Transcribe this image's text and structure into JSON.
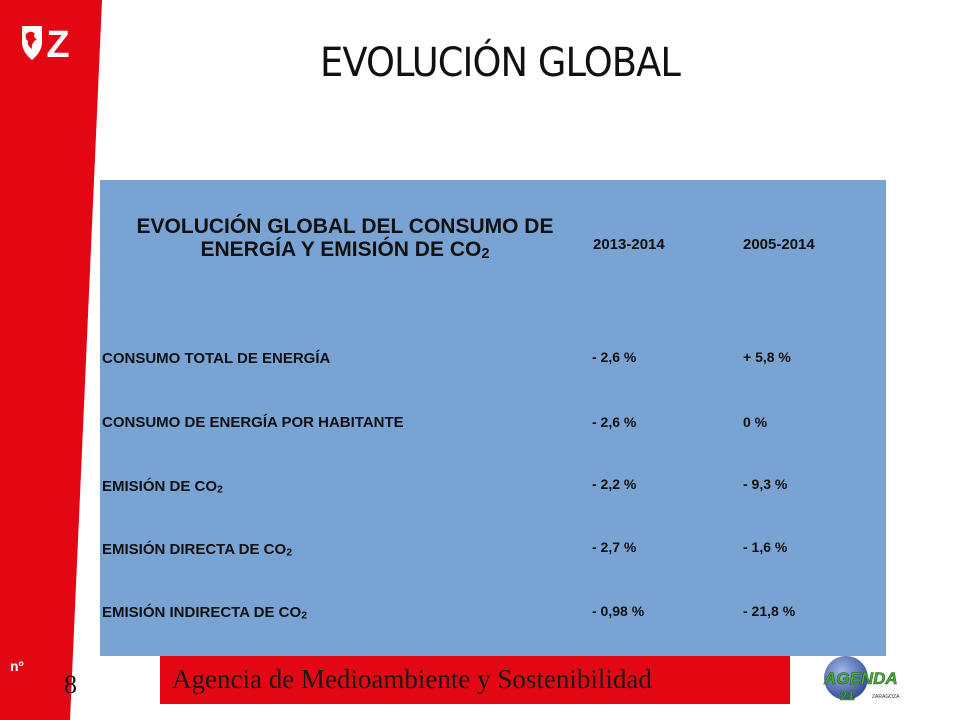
{
  "header": {
    "title": "EVOLUCIÓN GLOBAL",
    "logo_icon": "zaragoza-lion-logo-icon",
    "logo_text": "Z"
  },
  "table": {
    "header_title_main": "EVOLUCIÓN GLOBAL DEL CONSUMO DE ENERGÍA Y EMISIÓN DE CO",
    "header_title_sub": "2",
    "col1": "2013-2014",
    "col2": "2005-2014",
    "rows": [
      {
        "label": "CONSUMO TOTAL DE ENERGÍA",
        "sub": "",
        "v1": "- 2,6 %",
        "v2": "+ 5,8 %"
      },
      {
        "label": "CONSUMO DE ENERGÍA POR HABITANTE",
        "sub": "",
        "v1": "- 2,6 %",
        "v2": "0 %"
      },
      {
        "label": "EMISIÓN DE CO",
        "sub": "2",
        "v1": "- 2,2 %",
        "v2": "- 9,3 %"
      },
      {
        "label": "EMISIÓN DIRECTA DE CO",
        "sub": "2",
        "v1": "- 2,7 %",
        "v2": "- 1,6 %"
      },
      {
        "label": "EMISIÓN INDIRECTA DE CO",
        "sub": "2",
        "v1": "- 0,98 %",
        "v2": "- 21,8 %"
      }
    ]
  },
  "footer": {
    "no_label": "nº",
    "page_number": "8",
    "banner_text": "Agencia de Medioambiente y Sostenibilidad",
    "agenda_logo_text": "AGENDA",
    "agenda_logo_number": "21",
    "agenda_logo_city": "ZARAGOZA",
    "accent_red": "#e30613",
    "table_blue": "#79a3d3"
  }
}
